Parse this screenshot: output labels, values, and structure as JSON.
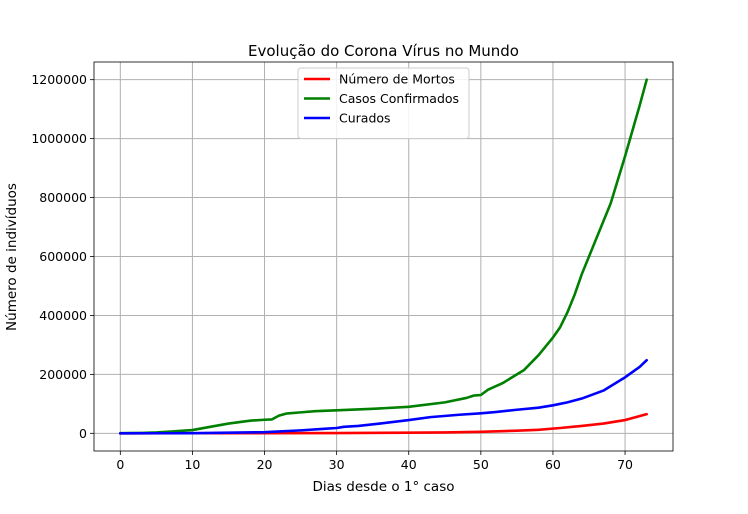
{
  "chart_data": {
    "type": "line",
    "title": "Evolução do Corona Vírus no Mundo",
    "xlabel": "Dias desde o 1° caso",
    "ylabel": "Número de indivíduos",
    "xlim": [
      -3.65,
      76.65
    ],
    "ylim": [
      -60000,
      1260000
    ],
    "xticks": [
      0,
      10,
      20,
      30,
      40,
      50,
      60,
      70
    ],
    "yticks": [
      0,
      200000,
      400000,
      600000,
      800000,
      1000000,
      1200000
    ],
    "grid": true,
    "legend_position": "upper-center",
    "series": [
      {
        "name": "Número de Mortos",
        "color": "#ff0000",
        "points": [
          [
            0,
            0
          ],
          [
            10,
            200
          ],
          [
            20,
            400
          ],
          [
            30,
            1000
          ],
          [
            40,
            2000
          ],
          [
            45,
            3000
          ],
          [
            50,
            5000
          ],
          [
            55,
            9000
          ],
          [
            58,
            12000
          ],
          [
            61,
            18000
          ],
          [
            64,
            25000
          ],
          [
            67,
            33000
          ],
          [
            70,
            45000
          ],
          [
            73,
            65000
          ]
        ]
      },
      {
        "name": "Casos Confirmados",
        "color": "#008000",
        "points": [
          [
            0,
            600
          ],
          [
            3,
            1500
          ],
          [
            5,
            3000
          ],
          [
            7,
            6000
          ],
          [
            10,
            11000
          ],
          [
            12,
            20000
          ],
          [
            15,
            33000
          ],
          [
            18,
            43000
          ],
          [
            20,
            46000
          ],
          [
            21,
            47000
          ],
          [
            22,
            60000
          ],
          [
            23,
            67000
          ],
          [
            25,
            71000
          ],
          [
            27,
            75000
          ],
          [
            30,
            78000
          ],
          [
            35,
            83000
          ],
          [
            40,
            90000
          ],
          [
            45,
            105000
          ],
          [
            48,
            120000
          ],
          [
            49,
            128000
          ],
          [
            50,
            130000
          ],
          [
            51,
            148000
          ],
          [
            53,
            170000
          ],
          [
            55,
            200000
          ],
          [
            56,
            215000
          ],
          [
            58,
            265000
          ],
          [
            60,
            325000
          ],
          [
            61,
            360000
          ],
          [
            62,
            410000
          ],
          [
            63,
            470000
          ],
          [
            64,
            540000
          ],
          [
            65,
            600000
          ],
          [
            66,
            660000
          ],
          [
            68,
            780000
          ],
          [
            70,
            940000
          ],
          [
            72,
            1110000
          ],
          [
            73,
            1200000
          ]
        ]
      },
      {
        "name": "Curados",
        "color": "#0000ff",
        "points": [
          [
            0,
            0
          ],
          [
            5,
            200
          ],
          [
            10,
            600
          ],
          [
            15,
            2000
          ],
          [
            20,
            4000
          ],
          [
            25,
            10000
          ],
          [
            28,
            15000
          ],
          [
            30,
            18000
          ],
          [
            31,
            22000
          ],
          [
            33,
            25000
          ],
          [
            36,
            33000
          ],
          [
            40,
            45000
          ],
          [
            43,
            55000
          ],
          [
            47,
            63000
          ],
          [
            50,
            68000
          ],
          [
            52,
            72000
          ],
          [
            55,
            80000
          ],
          [
            58,
            87000
          ],
          [
            60,
            95000
          ],
          [
            62,
            105000
          ],
          [
            64,
            118000
          ],
          [
            67,
            145000
          ],
          [
            70,
            190000
          ],
          [
            72,
            225000
          ],
          [
            73,
            248000
          ]
        ]
      }
    ]
  }
}
